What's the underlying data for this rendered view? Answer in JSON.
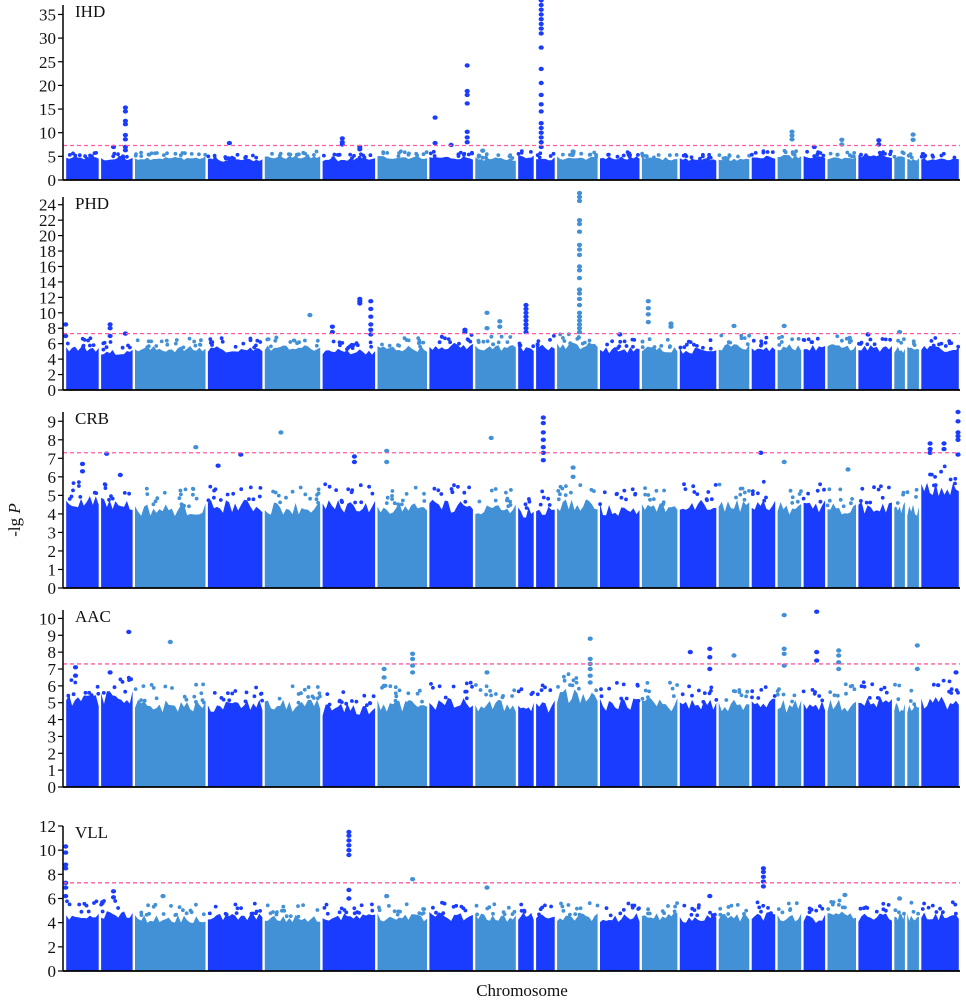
{
  "chart_data": {
    "type": "scatter",
    "subtype": "manhattan",
    "xlabel": "Chromosome",
    "ylabel": "-lg P",
    "ylabel_parts": {
      "prefix": "-lg ",
      "var": "P"
    },
    "threshold": 7.3,
    "colors": {
      "dark": "#1a3cff",
      "light": "#4290d6",
      "threshold": "#ff5aa0",
      "axis": "#000000"
    },
    "chromosome_widths": [
      35,
      34,
      73,
      57,
      58,
      55,
      52,
      46,
      43,
      18,
      21,
      43,
      42,
      38,
      39,
      33,
      26,
      26,
      24,
      31,
      36,
      13,
      14,
      40
    ],
    "panels": [
      {
        "title": "IHD",
        "ylim": [
          0,
          37
        ],
        "yticks": [
          "0",
          "5",
          "10",
          "15",
          "20",
          "25",
          "30",
          "35"
        ],
        "ytick_values": [
          0,
          5,
          10,
          15,
          20,
          25,
          30,
          35
        ],
        "base_levels": [
          4.8,
          4.6,
          4.8,
          4.4,
          5.0,
          4.5,
          5.0,
          4.9,
          4.6,
          5.2,
          4.7,
          4.8,
          4.9,
          4.7,
          4.5,
          4.4,
          5.0,
          5.1,
          4.9,
          4.9,
          5.2,
          4.9,
          4.6,
          4.6
        ],
        "peaks": [
          {
            "chr": 1,
            "pos": 0.75,
            "values": [
              15.3,
              14.5,
              12.5,
              11.8,
              9.5,
              8.6,
              7.0,
              6.3
            ]
          },
          {
            "chr": 1,
            "pos": 0.4,
            "values": [
              7.0
            ]
          },
          {
            "chr": 3,
            "pos": 0.4,
            "values": [
              7.8
            ]
          },
          {
            "chr": 5,
            "pos": 0.38,
            "values": [
              8.8,
              8.0,
              7.5
            ]
          },
          {
            "chr": 5,
            "pos": 0.7,
            "values": [
              7.0,
              6.5
            ]
          },
          {
            "chr": 7,
            "pos": 0.15,
            "values": [
              13.2,
              7.8
            ]
          },
          {
            "chr": 7,
            "pos": 0.5,
            "values": [
              7.4
            ]
          },
          {
            "chr": 7,
            "pos": 0.85,
            "values": [
              24.2,
              18.8,
              18.0,
              16.2,
              10.2,
              9.0,
              8.0
            ]
          },
          {
            "chr": 8,
            "pos": 0.2,
            "values": [
              6.2
            ]
          },
          {
            "chr": 10,
            "pos": 0.3,
            "values": [
              38,
              37,
              36,
              35,
              34,
              33,
              32,
              31,
              28,
              23.5,
              20.5,
              18,
              16,
              14.5,
              12,
              11,
              10,
              9,
              8,
              7
            ]
          },
          {
            "chr": 11,
            "pos": 0.4,
            "values": [
              6.0
            ]
          },
          {
            "chr": 17,
            "pos": 0.6,
            "values": [
              10.2,
              9.4,
              8.6
            ]
          },
          {
            "chr": 18,
            "pos": 0.5,
            "values": [
              7.0
            ]
          },
          {
            "chr": 19,
            "pos": 0.5,
            "values": [
              8.5,
              7.5
            ]
          },
          {
            "chr": 20,
            "pos": 0.6,
            "values": [
              8.4,
              7.5
            ]
          },
          {
            "chr": 22,
            "pos": 0.5,
            "values": [
              9.6,
              8.5
            ]
          }
        ]
      },
      {
        "title": "PHD",
        "ylim": [
          0,
          25
        ],
        "yticks": [
          "0",
          "2",
          "4",
          "6",
          "8",
          "10",
          "12",
          "14",
          "16",
          "18",
          "20",
          "22",
          "24"
        ],
        "ytick_values": [
          0,
          2,
          4,
          6,
          8,
          10,
          12,
          14,
          16,
          18,
          20,
          22,
          24
        ],
        "base_levels": [
          5.6,
          5.2,
          5.5,
          5.5,
          5.6,
          5.2,
          5.6,
          5.9,
          5.7,
          5.4,
          5.8,
          6.0,
          5.4,
          5.5,
          5.3,
          5.8,
          5.6,
          5.7,
          5.6,
          5.8,
          5.6,
          5.4,
          5.5,
          5.6
        ],
        "peaks": [
          {
            "chr": 0,
            "pos": 0.02,
            "values": [
              8.5,
              7.0
            ]
          },
          {
            "chr": 1,
            "pos": 0.3,
            "values": [
              8.5,
              8.0,
              7.0
            ]
          },
          {
            "chr": 1,
            "pos": 0.75,
            "values": [
              7.3
            ]
          },
          {
            "chr": 4,
            "pos": 0.8,
            "values": [
              9.7
            ]
          },
          {
            "chr": 5,
            "pos": 0.2,
            "values": [
              8.2,
              7.5
            ]
          },
          {
            "chr": 5,
            "pos": 0.7,
            "values": [
              11.8,
              11.5,
              11.2
            ]
          },
          {
            "chr": 5,
            "pos": 0.9,
            "values": [
              11.5,
              10.5,
              9.5,
              8.5,
              7.8,
              7.2
            ]
          },
          {
            "chr": 7,
            "pos": 0.8,
            "values": [
              7.5,
              7.8
            ]
          },
          {
            "chr": 8,
            "pos": 0.3,
            "values": [
              10.0,
              8.0
            ]
          },
          {
            "chr": 8,
            "pos": 0.6,
            "values": [
              8.9,
              8.2
            ]
          },
          {
            "chr": 9,
            "pos": 0.5,
            "values": [
              11.0,
              10.5,
              10.0,
              9.5,
              9.0,
              8.5,
              8.0,
              7.5
            ]
          },
          {
            "chr": 11,
            "pos": 0.55,
            "values": [
              25.5,
              25,
              24.5,
              22,
              21.5,
              20.5,
              18.8,
              18.2,
              17.5,
              16,
              15.5,
              14.5,
              13,
              12.5,
              11.8,
              11,
              10,
              9.5,
              9,
              8.5,
              8,
              7.5
            ]
          },
          {
            "chr": 12,
            "pos": 0.5,
            "values": [
              7.2
            ]
          },
          {
            "chr": 13,
            "pos": 0.2,
            "values": [
              11.5,
              10.6,
              9.8,
              8.8
            ]
          },
          {
            "chr": 13,
            "pos": 0.8,
            "values": [
              8.6,
              8.2
            ]
          },
          {
            "chr": 15,
            "pos": 0.5,
            "values": [
              8.3
            ]
          },
          {
            "chr": 17,
            "pos": 0.3,
            "values": [
              8.3
            ]
          },
          {
            "chr": 20,
            "pos": 0.3,
            "values": [
              7.2
            ]
          },
          {
            "chr": 21,
            "pos": 0.5,
            "values": [
              7.5
            ]
          }
        ]
      },
      {
        "title": "CRB",
        "ylim": [
          0,
          9.5
        ],
        "yticks": [
          "0",
          "1",
          "2",
          "3",
          "4",
          "5",
          "6",
          "7",
          "8",
          "9"
        ],
        "ytick_values": [
          0,
          1,
          2,
          3,
          4,
          5,
          6,
          7,
          8,
          9
        ],
        "base_levels": [
          4.8,
          4.7,
          4.4,
          4.6,
          4.5,
          4.6,
          4.5,
          4.6,
          4.4,
          4.3,
          4.4,
          4.6,
          4.4,
          4.5,
          4.7,
          4.6,
          4.7,
          4.5,
          4.6,
          4.4,
          4.5,
          4.5,
          4.4,
          5.5
        ],
        "peaks": [
          {
            "chr": 0,
            "pos": 0.5,
            "values": [
              6.7,
              6.3
            ]
          },
          {
            "chr": 1,
            "pos": 0.2,
            "values": [
              7.25
            ]
          },
          {
            "chr": 1,
            "pos": 0.6,
            "values": [
              6.1
            ]
          },
          {
            "chr": 2,
            "pos": 0.85,
            "values": [
              7.6
            ]
          },
          {
            "chr": 3,
            "pos": 0.2,
            "values": [
              6.6
            ]
          },
          {
            "chr": 3,
            "pos": 0.6,
            "values": [
              7.2
            ]
          },
          {
            "chr": 4,
            "pos": 0.3,
            "values": [
              8.4
            ]
          },
          {
            "chr": 5,
            "pos": 0.6,
            "values": [
              7.1,
              6.8
            ]
          },
          {
            "chr": 6,
            "pos": 0.2,
            "values": [
              7.4,
              6.8
            ]
          },
          {
            "chr": 8,
            "pos": 0.4,
            "values": [
              8.1
            ]
          },
          {
            "chr": 10,
            "pos": 0.4,
            "values": [
              9.2,
              8.9,
              8.4,
              8.0,
              7.6,
              7.3,
              6.9
            ]
          },
          {
            "chr": 11,
            "pos": 0.4,
            "values": [
              6.5,
              6.0
            ]
          },
          {
            "chr": 16,
            "pos": 0.4,
            "values": [
              7.3
            ]
          },
          {
            "chr": 17,
            "pos": 0.3,
            "values": [
              6.8
            ]
          },
          {
            "chr": 19,
            "pos": 0.7,
            "values": [
              6.4
            ]
          },
          {
            "chr": 23,
            "pos": 0.25,
            "values": [
              7.8,
              7.5,
              7.3
            ]
          },
          {
            "chr": 23,
            "pos": 0.6,
            "values": [
              7.8,
              7.5
            ]
          },
          {
            "chr": 23,
            "pos": 0.95,
            "values": [
              9.5,
              9.0,
              8.4,
              8.2,
              8.0,
              7.2
            ]
          }
        ]
      },
      {
        "title": "AAC",
        "ylim": [
          0,
          10.5
        ],
        "yticks": [
          "0",
          "1",
          "2",
          "3",
          "4",
          "5",
          "6",
          "7",
          "8",
          "9",
          "10"
        ],
        "ytick_values": [
          0,
          1,
          2,
          3,
          4,
          5,
          6,
          7,
          8,
          9,
          10
        ],
        "base_levels": [
          5.4,
          5.5,
          5.0,
          5.0,
          5.0,
          4.8,
          5.0,
          5.1,
          5.0,
          4.9,
          5.0,
          5.6,
          5.1,
          5.1,
          5.0,
          5.0,
          5.2,
          5.0,
          5.1,
          5.0,
          5.2,
          5.0,
          4.9,
          5.2
        ],
        "peaks": [
          {
            "chr": 0,
            "pos": 0.3,
            "values": [
              7.1,
              6.6
            ]
          },
          {
            "chr": 1,
            "pos": 0.85,
            "values": [
              9.2
            ]
          },
          {
            "chr": 1,
            "pos": 0.3,
            "values": [
              6.8
            ]
          },
          {
            "chr": 2,
            "pos": 0.5,
            "values": [
              8.6
            ]
          },
          {
            "chr": 6,
            "pos": 0.15,
            "values": [
              7.0,
              6.5,
              6.0
            ]
          },
          {
            "chr": 6,
            "pos": 0.7,
            "values": [
              7.9,
              7.6,
              7.2,
              6.8
            ]
          },
          {
            "chr": 8,
            "pos": 0.3,
            "values": [
              6.8
            ]
          },
          {
            "chr": 11,
            "pos": 0.8,
            "values": [
              8.8,
              7.6,
              7.3,
              7.0,
              6.6,
              6.2
            ]
          },
          {
            "chr": 14,
            "pos": 0.3,
            "values": [
              8.0
            ]
          },
          {
            "chr": 14,
            "pos": 0.8,
            "values": [
              8.2,
              7.7,
              7.0
            ]
          },
          {
            "chr": 15,
            "pos": 0.5,
            "values": [
              7.8
            ]
          },
          {
            "chr": 17,
            "pos": 0.3,
            "values": [
              10.2,
              8.2,
              7.9,
              7.2
            ]
          },
          {
            "chr": 18,
            "pos": 0.6,
            "values": [
              10.4,
              8.0,
              7.5
            ]
          },
          {
            "chr": 19,
            "pos": 0.4,
            "values": [
              8.1,
              7.8,
              7.4,
              7.0
            ]
          },
          {
            "chr": 22,
            "pos": 0.8,
            "values": [
              8.4,
              7.0
            ]
          },
          {
            "chr": 23,
            "pos": 0.9,
            "values": [
              6.8
            ]
          }
        ]
      },
      {
        "title": "VLL",
        "ylim": [
          0,
          12
        ],
        "yticks": [
          "0",
          "2",
          "4",
          "6",
          "8",
          "10",
          "12"
        ],
        "ytick_values": [
          0,
          2,
          4,
          6,
          8,
          10,
          12
        ],
        "base_levels": [
          4.8,
          4.8,
          4.5,
          4.6,
          4.5,
          4.6,
          4.6,
          4.7,
          4.6,
          4.7,
          4.5,
          4.6,
          4.6,
          4.7,
          4.5,
          4.6,
          4.7,
          4.6,
          4.5,
          4.8,
          4.6,
          4.7,
          4.7,
          4.7
        ],
        "peaks": [
          {
            "chr": 0,
            "pos": 0.02,
            "values": [
              10.3,
              9.8,
              8.8,
              8.5,
              7.3,
              6.9,
              6.2
            ]
          },
          {
            "chr": 1,
            "pos": 0.4,
            "values": [
              6.6,
              6.1
            ]
          },
          {
            "chr": 2,
            "pos": 0.4,
            "values": [
              6.2
            ]
          },
          {
            "chr": 5,
            "pos": 0.5,
            "values": [
              11.5,
              11.2,
              10.8,
              10.4,
              10.0,
              9.6,
              6.7,
              6.0
            ]
          },
          {
            "chr": 6,
            "pos": 0.2,
            "values": [
              6.2
            ]
          },
          {
            "chr": 6,
            "pos": 0.7,
            "values": [
              7.6
            ]
          },
          {
            "chr": 8,
            "pos": 0.3,
            "values": [
              6.9
            ]
          },
          {
            "chr": 14,
            "pos": 0.8,
            "values": [
              6.2
            ]
          },
          {
            "chr": 16,
            "pos": 0.5,
            "values": [
              8.5,
              8.2,
              7.8,
              7.4,
              7.0
            ]
          },
          {
            "chr": 19,
            "pos": 0.6,
            "values": [
              6.3
            ]
          },
          {
            "chr": 21,
            "pos": 0.5,
            "values": [
              6.0
            ]
          }
        ]
      }
    ]
  }
}
